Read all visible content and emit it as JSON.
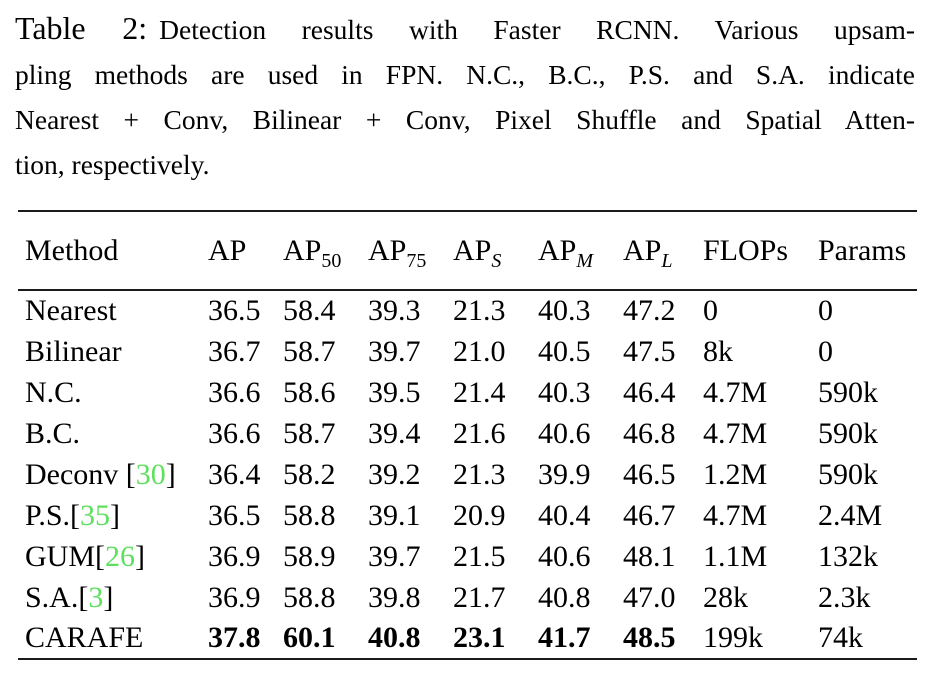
{
  "caption": {
    "label": "Table 2:",
    "lines": [
      "Detection results with Faster RCNN. Various upsam-",
      "pling methods are used in FPN. N.C., B.C., P.S. and S.A. indicate",
      "Nearest + Conv, Bilinear + Conv, Pixel Shuffle and Spatial Atten-",
      "tion, respectively."
    ]
  },
  "table": {
    "columns": [
      {
        "key": "method",
        "label": "Method",
        "sub": "",
        "sub_italic": false
      },
      {
        "key": "ap",
        "label": "AP",
        "sub": "",
        "sub_italic": false
      },
      {
        "key": "ap50",
        "label": "AP",
        "sub": "50",
        "sub_italic": false
      },
      {
        "key": "ap75",
        "label": "AP",
        "sub": "75",
        "sub_italic": false
      },
      {
        "key": "ap-s",
        "label": "AP",
        "sub": "S",
        "sub_italic": true
      },
      {
        "key": "ap-m",
        "label": "AP",
        "sub": "M",
        "sub_italic": true
      },
      {
        "key": "ap-l",
        "label": "AP",
        "sub": "L",
        "sub_italic": true
      },
      {
        "key": "flops",
        "label": "FLOPs",
        "sub": "",
        "sub_italic": false
      },
      {
        "key": "params",
        "label": "Params",
        "sub": "",
        "sub_italic": false
      }
    ],
    "rows": [
      {
        "method": "Nearest",
        "cite": "",
        "space_before_cite": false,
        "values": [
          "36.5",
          "58.4",
          "39.3",
          "21.3",
          "40.3",
          "47.2",
          "0",
          "0"
        ],
        "bold_value_count": 0
      },
      {
        "method": "Bilinear",
        "cite": "",
        "space_before_cite": false,
        "values": [
          "36.7",
          "58.7",
          "39.7",
          "21.0",
          "40.5",
          "47.5",
          "8k",
          "0"
        ],
        "bold_value_count": 0
      },
      {
        "method": "N.C.",
        "cite": "",
        "space_before_cite": false,
        "values": [
          "36.6",
          "58.6",
          "39.5",
          "21.4",
          "40.3",
          "46.4",
          "4.7M",
          "590k"
        ],
        "bold_value_count": 0
      },
      {
        "method": "B.C.",
        "cite": "",
        "space_before_cite": false,
        "values": [
          "36.6",
          "58.7",
          "39.4",
          "21.6",
          "40.6",
          "46.8",
          "4.7M",
          "590k"
        ],
        "bold_value_count": 0
      },
      {
        "method": "Deconv",
        "cite": "30",
        "space_before_cite": true,
        "values": [
          "36.4",
          "58.2",
          "39.2",
          "21.3",
          "39.9",
          "46.5",
          "1.2M",
          "590k"
        ],
        "bold_value_count": 0
      },
      {
        "method": "P.S.",
        "cite": "35",
        "space_before_cite": false,
        "values": [
          "36.5",
          "58.8",
          "39.1",
          "20.9",
          "40.4",
          "46.7",
          "4.7M",
          "2.4M"
        ],
        "bold_value_count": 0
      },
      {
        "method": "GUM",
        "cite": "26",
        "space_before_cite": false,
        "values": [
          "36.9",
          "58.9",
          "39.7",
          "21.5",
          "40.6",
          "48.1",
          "1.1M",
          "132k"
        ],
        "bold_value_count": 0
      },
      {
        "method": "S.A.",
        "cite": "3",
        "space_before_cite": false,
        "values": [
          "36.9",
          "58.8",
          "39.8",
          "21.7",
          "40.8",
          "47.0",
          "28k",
          "2.3k"
        ],
        "bold_value_count": 0
      },
      {
        "method": "CARAFE",
        "cite": "",
        "space_before_cite": false,
        "values": [
          "37.8",
          "60.1",
          "40.8",
          "23.1",
          "41.7",
          "48.5",
          "199k",
          "74k"
        ],
        "bold_value_count": 6
      }
    ]
  },
  "colors": {
    "citation_green": "#5de05d",
    "text": "#000000",
    "rule": "#1b1b1b",
    "background": "#ffffff"
  }
}
